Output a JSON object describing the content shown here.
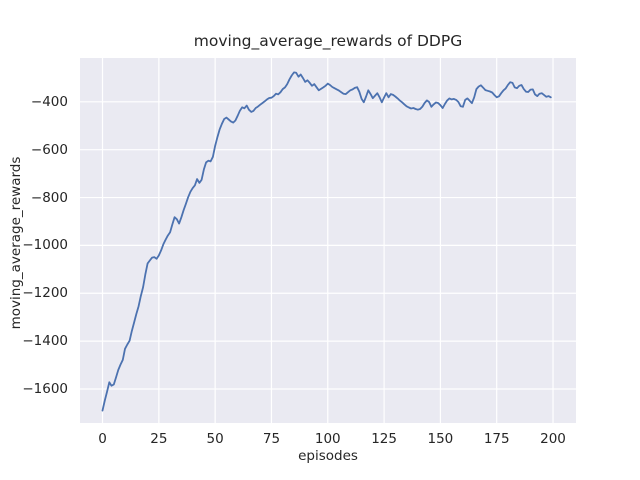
{
  "chart_data": {
    "type": "line",
    "title": "moving_average_rewards of DDPG",
    "xlabel": "episodes",
    "ylabel": "moving_average_rewards",
    "x_ticks": [
      0,
      25,
      50,
      75,
      100,
      125,
      150,
      175,
      200
    ],
    "y_ticks": [
      -400,
      -600,
      -800,
      -1000,
      -1200,
      -1400,
      -1600
    ],
    "xlim": [
      -10,
      210.2
    ],
    "ylim": [
      -1742,
      -217
    ],
    "grid": true,
    "legend": "none",
    "style": {
      "figure_bg": "#ffffff",
      "axes_bg": "#eaeaf2",
      "grid_color": "#ffffff",
      "line_color": "#4c72b0",
      "text_color": "#262626"
    },
    "series": [
      {
        "name": "moving_average_rewards",
        "x_start": 0,
        "x_step": 1,
        "values": [
          -1690,
          -1648,
          -1612,
          -1572,
          -1586,
          -1581,
          -1552,
          -1520,
          -1498,
          -1478,
          -1432,
          -1414,
          -1398,
          -1358,
          -1322,
          -1287,
          -1254,
          -1212,
          -1174,
          -1122,
          -1075,
          -1063,
          -1051,
          -1049,
          -1056,
          -1042,
          -1021,
          -996,
          -976,
          -959,
          -945,
          -912,
          -882,
          -891,
          -909,
          -882,
          -853,
          -826,
          -799,
          -776,
          -761,
          -749,
          -723,
          -739,
          -726,
          -682,
          -653,
          -646,
          -649,
          -630,
          -585,
          -548,
          -515,
          -492,
          -472,
          -466,
          -474,
          -482,
          -487,
          -478,
          -458,
          -437,
          -423,
          -427,
          -416,
          -433,
          -442,
          -438,
          -426,
          -420,
          -412,
          -405,
          -398,
          -390,
          -384,
          -383,
          -376,
          -366,
          -369,
          -360,
          -347,
          -340,
          -326,
          -306,
          -290,
          -277,
          -279,
          -295,
          -286,
          -301,
          -317,
          -310,
          -321,
          -333,
          -326,
          -339,
          -352,
          -346,
          -340,
          -333,
          -324,
          -330,
          -338,
          -343,
          -348,
          -353,
          -360,
          -366,
          -368,
          -360,
          -352,
          -348,
          -342,
          -339,
          -358,
          -388,
          -402,
          -378,
          -352,
          -368,
          -385,
          -374,
          -364,
          -381,
          -402,
          -382,
          -364,
          -381,
          -368,
          -371,
          -378,
          -386,
          -395,
          -402,
          -411,
          -419,
          -424,
          -428,
          -426,
          -430,
          -433,
          -430,
          -420,
          -405,
          -394,
          -401,
          -421,
          -411,
          -403,
          -405,
          -414,
          -426,
          -409,
          -394,
          -386,
          -390,
          -388,
          -392,
          -401,
          -419,
          -421,
          -392,
          -386,
          -396,
          -406,
          -381,
          -347,
          -336,
          -331,
          -341,
          -351,
          -354,
          -357,
          -361,
          -372,
          -381,
          -377,
          -364,
          -352,
          -344,
          -329,
          -318,
          -321,
          -340,
          -343,
          -333,
          -330,
          -346,
          -358,
          -359,
          -349,
          -348,
          -369,
          -376,
          -366,
          -364,
          -371,
          -379,
          -376,
          -381
        ]
      }
    ]
  }
}
